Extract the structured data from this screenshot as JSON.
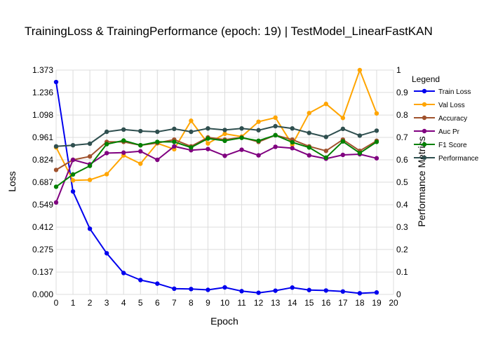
{
  "chart_data": {
    "type": "line",
    "title": "TrainingLoss & TrainingPerformance (epoch: 19) | TestModel_LinearFastKAN",
    "xlabel": "Epoch",
    "ylabel_left": "Loss",
    "ylabel_right": "Performance Metrics",
    "xlim": [
      0,
      20
    ],
    "ylim_left": [
      0,
      1.373
    ],
    "ylim_right": [
      0,
      1
    ],
    "x_ticks": [
      "0",
      "1",
      "2",
      "3",
      "4",
      "5",
      "6",
      "7",
      "8",
      "9",
      "10",
      "11",
      "12",
      "13",
      "14",
      "15",
      "16",
      "17",
      "18",
      "19",
      "20"
    ],
    "y_left_ticks": [
      "0.000",
      "0.137",
      "0.275",
      "0.412",
      "0.549",
      "0.687",
      "0.824",
      "0.961",
      "1.098",
      "1.236",
      "1.373"
    ],
    "y_right_ticks": [
      "0",
      "0.1",
      "0.2",
      "0.3",
      "0.4",
      "0.5",
      "0.6",
      "0.7",
      "0.8",
      "0.9",
      "1"
    ],
    "grid": true,
    "legend": {
      "title": "Legend",
      "placement": "right"
    },
    "x": [
      0,
      1,
      2,
      3,
      4,
      5,
      6,
      7,
      8,
      9,
      10,
      11,
      12,
      13,
      14,
      15,
      16,
      17,
      18,
      19
    ],
    "series": [
      {
        "name": "Train Loss",
        "axis": "left",
        "color": "#0000ee",
        "values": [
          1.3,
          0.63,
          0.402,
          0.252,
          0.131,
          0.088,
          0.066,
          0.035,
          0.033,
          0.028,
          0.043,
          0.02,
          0.01,
          0.023,
          0.042,
          0.027,
          0.024,
          0.018,
          0.007,
          0.012
        ]
      },
      {
        "name": "Val Loss",
        "axis": "left",
        "color": "#ffa500",
        "values": [
          0.9,
          0.698,
          0.701,
          0.736,
          0.851,
          0.8,
          0.925,
          0.889,
          1.063,
          0.924,
          0.983,
          0.966,
          1.057,
          1.082,
          0.917,
          1.11,
          1.166,
          1.08,
          1.373,
          1.108
        ]
      },
      {
        "name": "Accuracy",
        "axis": "right",
        "color": "#a0522d",
        "values": [
          0.555,
          0.6,
          0.615,
          0.68,
          0.68,
          0.665,
          0.675,
          0.69,
          0.66,
          0.7,
          0.69,
          0.7,
          0.68,
          0.71,
          0.69,
          0.66,
          0.64,
          0.69,
          0.64,
          0.685
        ]
      },
      {
        "name": "Auc Pr",
        "axis": "right",
        "color": "#800080",
        "values": [
          0.41,
          0.6,
          0.58,
          0.63,
          0.632,
          0.638,
          0.6,
          0.66,
          0.643,
          0.648,
          0.618,
          0.645,
          0.62,
          0.658,
          0.652,
          0.62,
          0.605,
          0.622,
          0.625,
          0.607
        ]
      },
      {
        "name": "F1 Score",
        "axis": "right",
        "color": "#008000",
        "values": [
          0.48,
          0.535,
          0.573,
          0.67,
          0.686,
          0.665,
          0.68,
          0.68,
          0.655,
          0.695,
          0.685,
          0.698,
          0.685,
          0.71,
          0.678,
          0.655,
          0.61,
          0.682,
          0.63,
          0.68
        ]
      },
      {
        "name": "Performance",
        "axis": "right",
        "color": "#2f4f4f",
        "values": [
          0.66,
          0.665,
          0.672,
          0.725,
          0.735,
          0.728,
          0.725,
          0.738,
          0.725,
          0.74,
          0.733,
          0.74,
          0.732,
          0.75,
          0.74,
          0.72,
          0.702,
          0.738,
          0.708,
          0.73
        ]
      }
    ]
  }
}
